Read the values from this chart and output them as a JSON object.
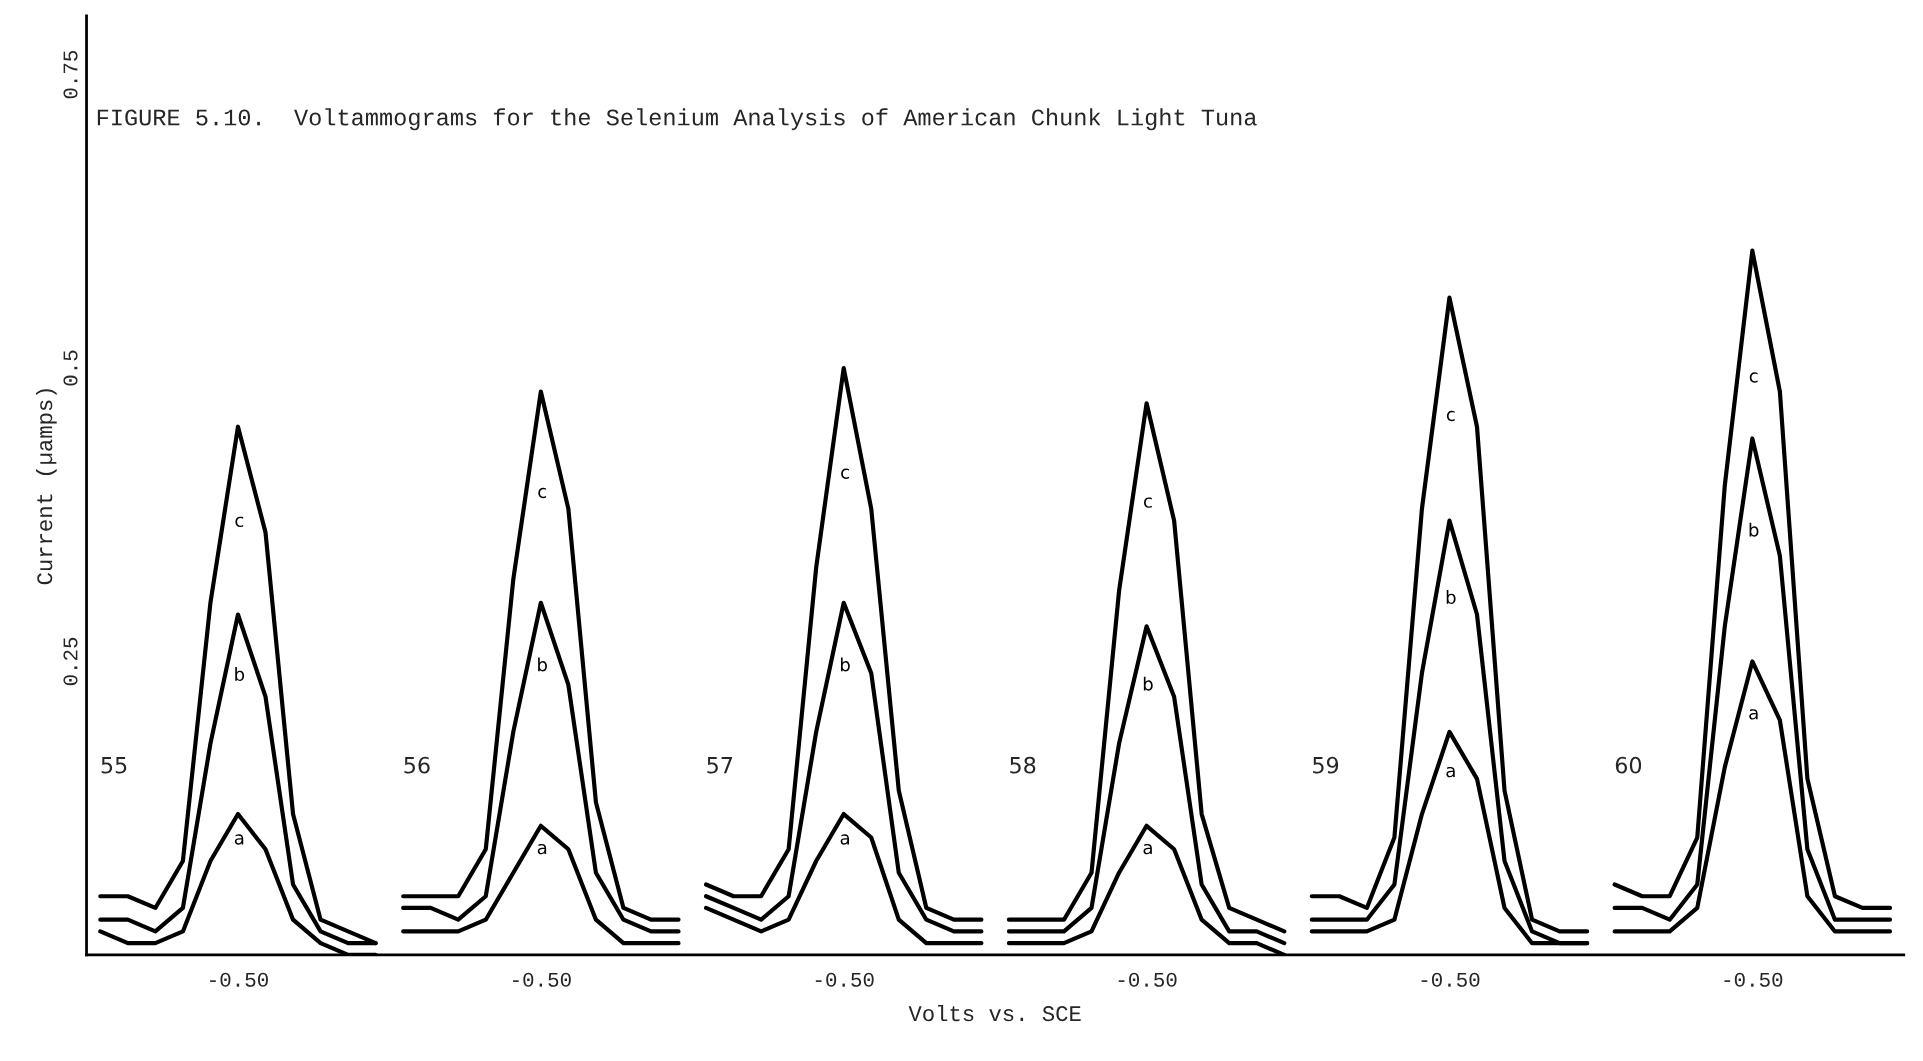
{
  "chart_data": {
    "type": "line",
    "title": "FIGURE 5.10.  Voltammograms for the Selenium Analysis of American Chunk Light Tuna",
    "xlabel": "Volts vs. SCE",
    "ylabel": "Current (µamps)",
    "categories": [
      null,
      null,
      null,
      null,
      null,
      "-0.50",
      null,
      null,
      null,
      null,
      null,
      null,
      null,
      null,
      null,
      null,
      "-0.50",
      null,
      null,
      null,
      null,
      null,
      null,
      null,
      null,
      null,
      null,
      "-0.50",
      null,
      null,
      null,
      null,
      null,
      null,
      null,
      null,
      null,
      null,
      "-0.50",
      null,
      null,
      null,
      null,
      null,
      null,
      null,
      null,
      null,
      null,
      "-0.50",
      null,
      null,
      null,
      null,
      null,
      null,
      null,
      null,
      null,
      null,
      "-0.50",
      null,
      null,
      null,
      null,
      null
    ],
    "ylim": [
      0,
      0.8
    ],
    "yticks": [
      0.25,
      0.5,
      0.75
    ],
    "grid": false,
    "legend": false,
    "annotations": [
      "55",
      "56",
      "57",
      "58",
      "59",
      "60"
    ],
    "series": [
      {
        "name": "c",
        "color": "#000000",
        "values": [
          0.05,
          0.05,
          0.04,
          0.08,
          0.3,
          0.45,
          0.36,
          0.12,
          0.03,
          0.02,
          0.01,
          null,
          null,
          null,
          null,
          null,
          null,
          null,
          null,
          null,
          null,
          null,
          null,
          null,
          null,
          null,
          null,
          null,
          null,
          null,
          null,
          null,
          null,
          null,
          null,
          null,
          null,
          null,
          null,
          null,
          null,
          null,
          null,
          null,
          null,
          null,
          null,
          null,
          null,
          null,
          null,
          null,
          null,
          null,
          null,
          null,
          null,
          null,
          null,
          null,
          null,
          null,
          null,
          null,
          null,
          null
        ]
      },
      {
        "name": "b",
        "color": "#000000",
        "values": [
          0.03,
          0.03,
          0.02,
          0.04,
          0.18,
          0.29,
          0.22,
          0.06,
          0.02,
          0.01,
          0.01,
          null,
          null,
          null,
          null,
          null,
          null,
          null,
          null,
          null,
          null,
          null,
          null,
          null,
          null,
          null,
          null,
          null,
          null,
          null,
          null,
          null,
          null,
          null,
          null,
          null,
          null,
          null,
          null,
          null,
          null,
          null,
          null,
          null,
          null,
          null,
          null,
          null,
          null,
          null,
          null,
          null,
          null,
          null,
          null,
          null,
          null,
          null,
          null,
          null,
          null,
          null,
          null,
          null,
          null,
          null
        ]
      },
      {
        "name": "a",
        "color": "#000000",
        "values": [
          0.02,
          0.01,
          0.01,
          0.02,
          0.08,
          0.12,
          0.09,
          0.03,
          0.01,
          0.0,
          0.0,
          null,
          null,
          null,
          null,
          null,
          null,
          null,
          null,
          null,
          null,
          null,
          null,
          null,
          null,
          null,
          null,
          null,
          null,
          null,
          null,
          null,
          null,
          null,
          null,
          null,
          null,
          null,
          null,
          null,
          null,
          null,
          null,
          null,
          null,
          null,
          null,
          null,
          null,
          null,
          null,
          null,
          null,
          null,
          null,
          null,
          null,
          null,
          null,
          null,
          null,
          null,
          null,
          null,
          null,
          null
        ]
      },
      {
        "name": "c",
        "color": "#000000",
        "values": [
          null,
          null,
          null,
          null,
          null,
          null,
          null,
          null,
          null,
          null,
          null,
          0.05,
          0.05,
          0.05,
          0.09,
          0.32,
          0.48,
          0.38,
          0.13,
          0.04,
          0.03,
          0.03,
          null,
          null,
          null,
          null,
          null,
          null,
          null,
          null,
          null,
          null,
          null,
          null,
          null,
          null,
          null,
          null,
          null,
          null,
          null,
          null,
          null,
          null,
          null,
          null,
          null,
          null,
          null,
          null,
          null,
          null,
          null,
          null,
          null,
          null,
          null,
          null,
          null,
          null,
          null,
          null,
          null,
          null,
          null,
          null
        ]
      },
      {
        "name": "b",
        "color": "#000000",
        "values": [
          null,
          null,
          null,
          null,
          null,
          null,
          null,
          null,
          null,
          null,
          null,
          0.04,
          0.04,
          0.03,
          0.05,
          0.19,
          0.3,
          0.23,
          0.07,
          0.03,
          0.02,
          0.02,
          null,
          null,
          null,
          null,
          null,
          null,
          null,
          null,
          null,
          null,
          null,
          null,
          null,
          null,
          null,
          null,
          null,
          null,
          null,
          null,
          null,
          null,
          null,
          null,
          null,
          null,
          null,
          null,
          null,
          null,
          null,
          null,
          null,
          null,
          null,
          null,
          null,
          null,
          null,
          null,
          null,
          null,
          null,
          null
        ]
      },
      {
        "name": "a",
        "color": "#000000",
        "values": [
          null,
          null,
          null,
          null,
          null,
          null,
          null,
          null,
          null,
          null,
          null,
          0.02,
          0.02,
          0.02,
          0.03,
          0.07,
          0.11,
          0.09,
          0.03,
          0.01,
          0.01,
          0.01,
          null,
          null,
          null,
          null,
          null,
          null,
          null,
          null,
          null,
          null,
          null,
          null,
          null,
          null,
          null,
          null,
          null,
          null,
          null,
          null,
          null,
          null,
          null,
          null,
          null,
          null,
          null,
          null,
          null,
          null,
          null,
          null,
          null,
          null,
          null,
          null,
          null,
          null,
          null,
          null,
          null,
          null,
          null,
          null
        ]
      },
      {
        "name": "c",
        "color": "#000000",
        "values": [
          null,
          null,
          null,
          null,
          null,
          null,
          null,
          null,
          null,
          null,
          null,
          null,
          null,
          null,
          null,
          null,
          null,
          null,
          null,
          null,
          null,
          null,
          0.06,
          0.05,
          0.05,
          0.09,
          0.33,
          0.5,
          0.38,
          0.14,
          0.04,
          0.03,
          0.03,
          null,
          null,
          null,
          null,
          null,
          null,
          null,
          null,
          null,
          null,
          null,
          null,
          null,
          null,
          null,
          null,
          null,
          null,
          null,
          null,
          null,
          null,
          null,
          null,
          null,
          null,
          null,
          null,
          null,
          null,
          null,
          null,
          null
        ]
      },
      {
        "name": "b",
        "color": "#000000",
        "values": [
          null,
          null,
          null,
          null,
          null,
          null,
          null,
          null,
          null,
          null,
          null,
          null,
          null,
          null,
          null,
          null,
          null,
          null,
          null,
          null,
          null,
          null,
          0.05,
          0.04,
          0.03,
          0.05,
          0.19,
          0.3,
          0.24,
          0.07,
          0.03,
          0.02,
          0.02,
          null,
          null,
          null,
          null,
          null,
          null,
          null,
          null,
          null,
          null,
          null,
          null,
          null,
          null,
          null,
          null,
          null,
          null,
          null,
          null,
          null,
          null,
          null,
          null,
          null,
          null,
          null,
          null,
          null,
          null,
          null,
          null,
          null
        ]
      },
      {
        "name": "a",
        "color": "#000000",
        "values": [
          null,
          null,
          null,
          null,
          null,
          null,
          null,
          null,
          null,
          null,
          null,
          null,
          null,
          null,
          null,
          null,
          null,
          null,
          null,
          null,
          null,
          null,
          0.04,
          0.03,
          0.02,
          0.03,
          0.08,
          0.12,
          0.1,
          0.03,
          0.01,
          0.01,
          0.01,
          null,
          null,
          null,
          null,
          null,
          null,
          null,
          null,
          null,
          null,
          null,
          null,
          null,
          null,
          null,
          null,
          null,
          null,
          null,
          null,
          null,
          null,
          null,
          null,
          null,
          null,
          null,
          null,
          null,
          null,
          null,
          null,
          null
        ]
      },
      {
        "name": "c",
        "color": "#000000",
        "values": [
          null,
          null,
          null,
          null,
          null,
          null,
          null,
          null,
          null,
          null,
          null,
          null,
          null,
          null,
          null,
          null,
          null,
          null,
          null,
          null,
          null,
          null,
          null,
          null,
          null,
          null,
          null,
          null,
          null,
          null,
          null,
          null,
          null,
          0.03,
          0.03,
          0.03,
          0.07,
          0.31,
          0.47,
          0.37,
          0.12,
          0.04,
          0.03,
          0.02,
          null,
          null,
          null,
          null,
          null,
          null,
          null,
          null,
          null,
          null,
          null,
          null,
          null,
          null,
          null,
          null,
          null,
          null,
          null,
          null,
          null,
          null
        ]
      },
      {
        "name": "b",
        "color": "#000000",
        "values": [
          null,
          null,
          null,
          null,
          null,
          null,
          null,
          null,
          null,
          null,
          null,
          null,
          null,
          null,
          null,
          null,
          null,
          null,
          null,
          null,
          null,
          null,
          null,
          null,
          null,
          null,
          null,
          null,
          null,
          null,
          null,
          null,
          null,
          0.02,
          0.02,
          0.02,
          0.04,
          0.18,
          0.28,
          0.22,
          0.06,
          0.02,
          0.02,
          0.01,
          null,
          null,
          null,
          null,
          null,
          null,
          null,
          null,
          null,
          null,
          null,
          null,
          null,
          null,
          null,
          null,
          null,
          null,
          null,
          null,
          null,
          null
        ]
      },
      {
        "name": "a",
        "color": "#000000",
        "values": [
          null,
          null,
          null,
          null,
          null,
          null,
          null,
          null,
          null,
          null,
          null,
          null,
          null,
          null,
          null,
          null,
          null,
          null,
          null,
          null,
          null,
          null,
          null,
          null,
          null,
          null,
          null,
          null,
          null,
          null,
          null,
          null,
          null,
          0.01,
          0.01,
          0.01,
          0.02,
          0.07,
          0.11,
          0.09,
          0.03,
          0.01,
          0.01,
          0.0,
          null,
          null,
          null,
          null,
          null,
          null,
          null,
          null,
          null,
          null,
          null,
          null,
          null,
          null,
          null,
          null,
          null,
          null,
          null,
          null,
          null,
          null
        ]
      },
      {
        "name": "c",
        "color": "#000000",
        "values": [
          null,
          null,
          null,
          null,
          null,
          null,
          null,
          null,
          null,
          null,
          null,
          null,
          null,
          null,
          null,
          null,
          null,
          null,
          null,
          null,
          null,
          null,
          null,
          null,
          null,
          null,
          null,
          null,
          null,
          null,
          null,
          null,
          null,
          null,
          null,
          null,
          null,
          null,
          null,
          null,
          null,
          null,
          null,
          null,
          0.05,
          0.05,
          0.04,
          0.1,
          0.38,
          0.56,
          0.45,
          0.14,
          0.03,
          0.02,
          0.02,
          null,
          null,
          null,
          null,
          null,
          null,
          null,
          null,
          null,
          null,
          null
        ]
      },
      {
        "name": "b",
        "color": "#000000",
        "values": [
          null,
          null,
          null,
          null,
          null,
          null,
          null,
          null,
          null,
          null,
          null,
          null,
          null,
          null,
          null,
          null,
          null,
          null,
          null,
          null,
          null,
          null,
          null,
          null,
          null,
          null,
          null,
          null,
          null,
          null,
          null,
          null,
          null,
          null,
          null,
          null,
          null,
          null,
          null,
          null,
          null,
          null,
          null,
          null,
          0.03,
          0.03,
          0.03,
          0.06,
          0.24,
          0.37,
          0.29,
          0.08,
          0.02,
          0.01,
          0.01,
          null,
          null,
          null,
          null,
          null,
          null,
          null,
          null,
          null,
          null,
          null
        ]
      },
      {
        "name": "a",
        "color": "#000000",
        "values": [
          null,
          null,
          null,
          null,
          null,
          null,
          null,
          null,
          null,
          null,
          null,
          null,
          null,
          null,
          null,
          null,
          null,
          null,
          null,
          null,
          null,
          null,
          null,
          null,
          null,
          null,
          null,
          null,
          null,
          null,
          null,
          null,
          null,
          null,
          null,
          null,
          null,
          null,
          null,
          null,
          null,
          null,
          null,
          null,
          0.02,
          0.02,
          0.02,
          0.03,
          0.12,
          0.19,
          0.15,
          0.04,
          0.01,
          0.01,
          0.01,
          null,
          null,
          null,
          null,
          null,
          null,
          null,
          null,
          null,
          null,
          null
        ]
      },
      {
        "name": "c",
        "color": "#000000",
        "values": [
          null,
          null,
          null,
          null,
          null,
          null,
          null,
          null,
          null,
          null,
          null,
          null,
          null,
          null,
          null,
          null,
          null,
          null,
          null,
          null,
          null,
          null,
          null,
          null,
          null,
          null,
          null,
          null,
          null,
          null,
          null,
          null,
          null,
          null,
          null,
          null,
          null,
          null,
          null,
          null,
          null,
          null,
          null,
          null,
          null,
          null,
          null,
          null,
          null,
          null,
          null,
          null,
          null,
          null,
          null,
          0.06,
          0.05,
          0.05,
          0.1,
          0.4,
          0.6,
          0.48,
          0.15,
          0.05,
          0.04,
          0.04
        ]
      },
      {
        "name": "b",
        "color": "#000000",
        "values": [
          null,
          null,
          null,
          null,
          null,
          null,
          null,
          null,
          null,
          null,
          null,
          null,
          null,
          null,
          null,
          null,
          null,
          null,
          null,
          null,
          null,
          null,
          null,
          null,
          null,
          null,
          null,
          null,
          null,
          null,
          null,
          null,
          null,
          null,
          null,
          null,
          null,
          null,
          null,
          null,
          null,
          null,
          null,
          null,
          null,
          null,
          null,
          null,
          null,
          null,
          null,
          null,
          null,
          null,
          null,
          0.04,
          0.04,
          0.03,
          0.06,
          0.28,
          0.44,
          0.34,
          0.09,
          0.03,
          0.03,
          0.03
        ]
      },
      {
        "name": "a",
        "color": "#000000",
        "values": [
          null,
          null,
          null,
          null,
          null,
          null,
          null,
          null,
          null,
          null,
          null,
          null,
          null,
          null,
          null,
          null,
          null,
          null,
          null,
          null,
          null,
          null,
          null,
          null,
          null,
          null,
          null,
          null,
          null,
          null,
          null,
          null,
          null,
          null,
          null,
          null,
          null,
          null,
          null,
          null,
          null,
          null,
          null,
          null,
          null,
          null,
          null,
          null,
          null,
          null,
          null,
          null,
          null,
          null,
          null,
          0.02,
          0.02,
          0.02,
          0.04,
          0.16,
          0.25,
          0.2,
          0.05,
          0.02,
          0.02,
          0.02
        ]
      }
    ]
  }
}
